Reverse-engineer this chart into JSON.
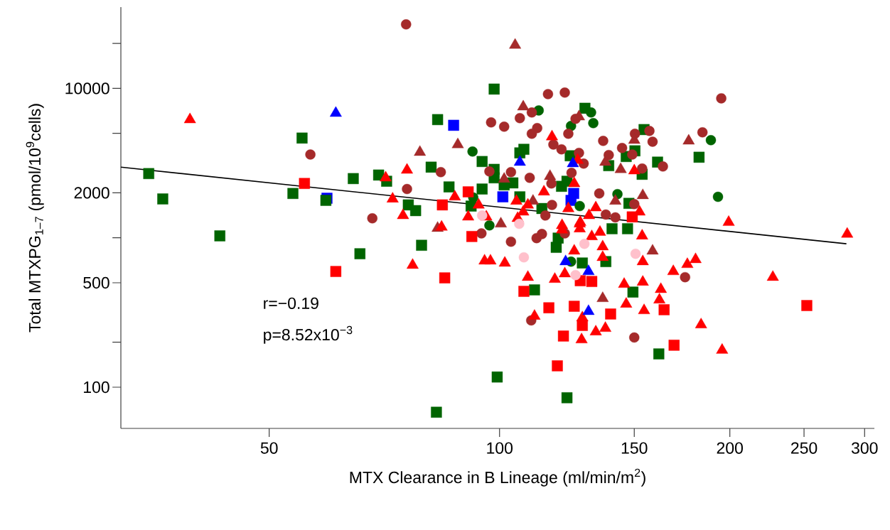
{
  "chart_data": {
    "type": "scatter",
    "xlabel": "MTX Clearance in B Lineage (ml/min/m$^{2}$)",
    "ylabel": "Total MTXPG$_{1–7}$ (pmol/10$^{9}$cells)",
    "log": "xy",
    "xlim": [
      32,
      309
    ],
    "ylim": [
      53,
      35000
    ],
    "xticks": [
      50,
      100,
      150,
      200,
      250,
      300
    ],
    "yticks": [
      100,
      {
        "value": 200,
        "label": null
      },
      500,
      {
        "value": 1000,
        "label": null
      },
      2000,
      {
        "value": 5000,
        "label": null
      },
      10000,
      {
        "value": 20000,
        "label": null
      }
    ],
    "annotations": [
      "r=−0.19",
      "p=8.52x10$^{−3}$"
    ],
    "series": [
      {
        "color": "#0000ff",
        "marker": "square",
        "x": [
          59.5,
          87.1,
          101.0,
          125.0,
          124.0
        ],
        "values": [
          1840,
          5660,
          1880,
          1980,
          1780
        ]
      },
      {
        "color": "#006400",
        "marker": "square",
        "x": [
          55.2,
          34.8,
          36.3,
          53.7,
          59.3,
          64.4,
          69.5,
          71.2,
          76.0,
          77.7,
          43.1,
          65.7,
          79.1,
          98.4,
          129.3,
          83.0,
          154.5,
          106.3,
          107.6,
          146.4,
          150.3,
          123.7,
          138.9,
          81.4,
          94.9,
          98.4,
          98.4,
          104.1,
          101.4,
          153.6,
          85.9,
          94.9,
          106.3,
          120.5,
          122.5,
          147.6,
          91.8,
          113.6,
          119.3,
          118.6,
          128.3,
          137.7,
          140.3,
          147.0,
          149.4,
          111.1,
          99.3,
          122.5,
          82.7,
          182.3,
          160.9,
          161.5
        ],
        "values": [
          4650,
          2690,
          1820,
          1980,
          1780,
          2490,
          2630,
          2390,
          1660,
          1520,
          1030,
          782,
          891,
          9890,
          7360,
          6180,
          5300,
          3700,
          3910,
          3500,
          3820,
          3540,
          3040,
          2970,
          3240,
          2870,
          2520,
          2330,
          2260,
          2660,
          2190,
          2120,
          1880,
          2210,
          2390,
          1700,
          1630,
          1570,
          995,
          863,
          678,
          693,
          1150,
          1150,
          433,
          448,
          117,
          85,
          68,
          3460,
          3210,
          167
        ]
      },
      {
        "color": "#006400",
        "marker": "circle",
        "x": [
          112.5,
          131.7,
          132.6,
          124.0,
          92.2,
          142.6,
          127.3,
          92.4,
          97.0,
          124.0,
          188.9,
          193.0
        ],
        "values": [
          7120,
          6900,
          5850,
          5600,
          3780,
          1960,
          1630,
          1860,
          1210,
          693,
          4500,
          1880
        ]
      },
      {
        "color": "#a52a2a",
        "marker": "circle",
        "x": [
          75.5,
          56.6,
          75.7,
          68.2,
          115.7,
          121.7,
          110.2,
          125.7,
          97.5,
          101.4,
          106.3,
          112.0,
          110.2,
          123.0,
          136.6,
          150.3,
          117.6,
          120.5,
          144.6,
          138.9,
          149.1,
          127.0,
          128.8,
          83.8,
          97.0,
          103.5,
          109.5,
          124.2,
          153.6,
          116.9,
          135.0,
          150.0,
          117.1,
          114.8,
          137.7,
          141.7,
          94.7,
          103.5,
          111.8,
          113.6,
          121.7,
          110.0,
          150.0,
          194.9,
          157.0,
          158.5,
          184.2,
          163.5,
          174.8
        ],
        "values": [
          26800,
          3610,
          2120,
          1350,
          9160,
          9370,
          6900,
          6250,
          5920,
          5540,
          6320,
          5420,
          4970,
          4970,
          4450,
          4970,
          4210,
          3910,
          3990,
          3580,
          3610,
          3700,
          3140,
          2750,
          2780,
          2750,
          2520,
          2720,
          2910,
          2310,
          1980,
          1680,
          1660,
          1410,
          1430,
          1370,
          1070,
          942,
          995,
          1060,
          1070,
          280,
          215,
          8580,
          5190,
          4400,
          5080,
          3000,
          545
        ]
      },
      {
        "color": "#a52a2a",
        "marker": "triangle",
        "x": [
          78.7,
          104.8,
          107.4,
          127.0,
          150.0,
          88.2,
          137.5,
          101.4,
          116.4,
          144.0,
          153.9,
          141.7,
          110.6,
          100.4,
          83.0,
          136.4,
          158.5,
          176.7
        ],
        "values": [
          3740,
          19500,
          7530,
          6460,
          4500,
          4210,
          3210,
          2470,
          2580,
          2870,
          1920,
          1760,
          1760,
          1240,
          1160,
          393,
          817,
          4450
        ]
      },
      {
        "color": "#ff0000",
        "marker": "triangle",
        "x": [
          39.4,
          71.0,
          75.7,
          72.5,
          74.8,
          77.0,
          117.1,
          126.5,
          150.0,
          87.4,
          93.9,
          96.1,
          91.0,
          105.2,
          108.9,
          107.4,
          105.6,
          114.3,
          125.2,
          123.0,
          127.5,
          133.6,
          130.9,
          152.4,
          84.0,
          120.7,
          95.6,
          97.3,
          101.6,
          127.3,
          127.3,
          120.7,
          132.0,
          135.3,
          136.4,
          136.4,
          125.2,
          118.1,
          121.7,
          108.9,
          145.5,
          146.4,
          154.5,
          111.1,
          128.3,
          133.6,
          137.5,
          128.0,
          153.9,
          153.6,
          153.9,
          199.3,
          284.7,
          168.7,
          176.0,
          180.4,
          227.6,
          162.5,
          161.8,
          183.4,
          195.4
        ],
        "values": [
          6180,
          2520,
          2840,
          1820,
          1410,
          656,
          4750,
          3310,
          2810,
          1880,
          1660,
          1380,
          1380,
          1760,
          1660,
          1490,
          1350,
          2030,
          2310,
          1570,
          1270,
          1590,
          1410,
          1490,
          1180,
          1210,
          701,
          701,
          678,
          1240,
          1150,
          1130,
          1020,
          1090,
          872,
          740,
          817,
          528,
          575,
          545,
          489,
          360,
          326,
          299,
          292,
          235,
          248,
          208,
          693,
          1030,
          505,
          1270,
          1060,
          595,
          664,
          716,
          545,
          452,
          384,
          262,
          177
        ]
      },
      {
        "color": "#ff0000",
        "marker": "square",
        "x": [
          55.6,
          61.1,
          91.0,
          84.2,
          149.1,
          92.0,
          84.8,
          127.5,
          132.0,
          107.6,
          116.0,
          125.2,
          139.7,
          128.3,
          121.2,
          119.0,
          164.1,
          252.1,
          169.1
        ],
        "values": [
          2310,
          595,
          2030,
          1660,
          1380,
          1020,
          539,
          516,
          510,
          438,
          340,
          348,
          309,
          259,
          220,
          139,
          330,
          352,
          191
        ]
      },
      {
        "color": "#0000ff",
        "marker": "triangle",
        "x": [
          61.1,
          106.3,
          124.7,
          122.0,
          130.7,
          130.7
        ],
        "values": [
          6820,
          3210,
          3140,
          693,
          595,
          322
        ]
      },
      {
        "color": "#ffc0cb",
        "marker": "circle",
        "x": [
          94.9,
          106.1,
          107.6,
          129.1,
          125.7,
          150.6
        ],
        "values": [
          1410,
          1240,
          740,
          911,
          563,
          782
        ]
      },
      {
        "type": "line",
        "color": "#000000",
        "marker": "none",
        "x": [
          32,
          284
        ],
        "values": [
          2970,
          912
        ]
      }
    ]
  }
}
